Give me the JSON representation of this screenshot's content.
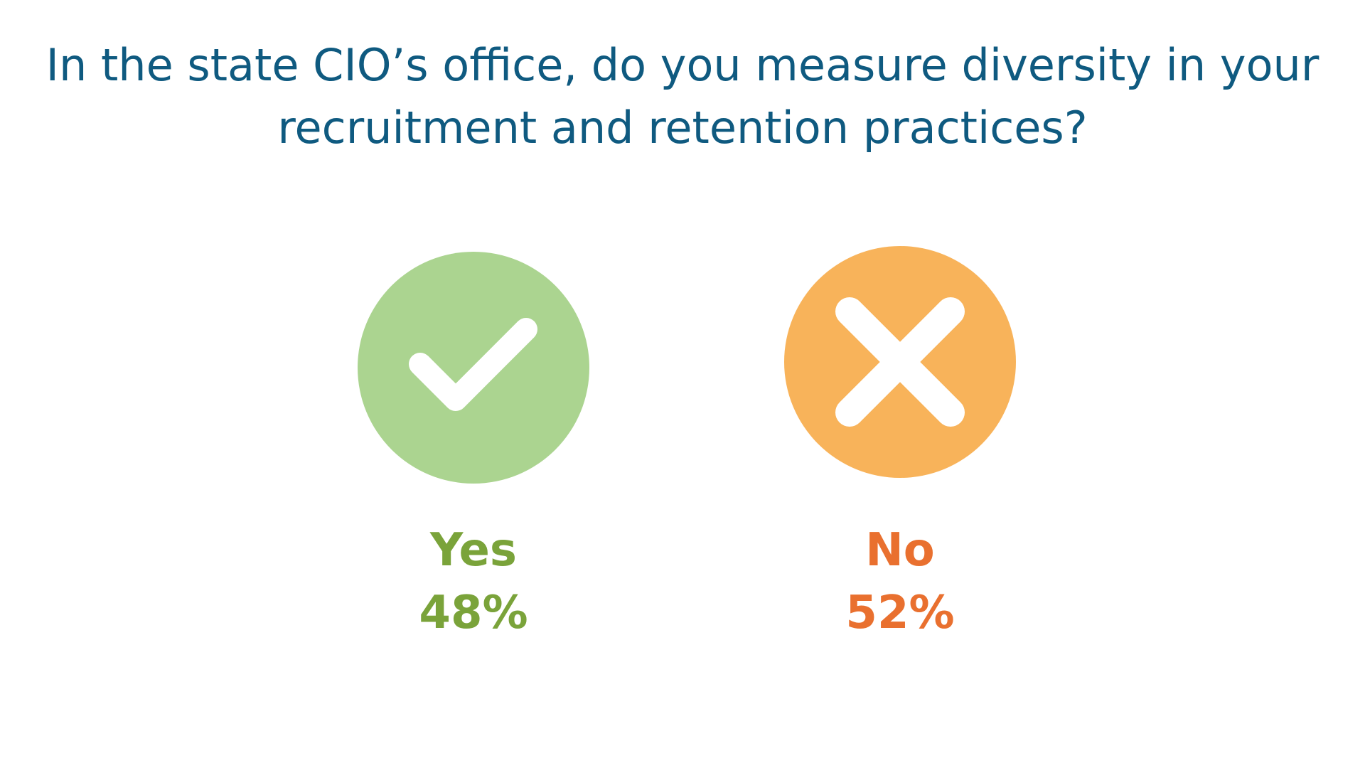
{
  "title_lines": [
    "In the state CIO’s office, do you measure diversity in your",
    "recruitment and retention practices?"
  ],
  "colors": {
    "title": "#0f5a80",
    "yes_circle": "#abd490",
    "yes_text": "#7aa33a",
    "no_circle": "#f8b35a",
    "no_text": "#e9702f",
    "icon_stroke": "#ffffff"
  },
  "icons": {
    "yes": "check-icon",
    "no": "close-icon"
  },
  "chart_data": {
    "type": "pie",
    "title": "In the state CIO’s office, do you measure diversity in your recruitment and retention practices?",
    "categories": [
      "Yes",
      "No"
    ],
    "values": [
      48,
      52
    ],
    "value_labels": [
      "48%",
      "52%"
    ],
    "unit": "%"
  }
}
